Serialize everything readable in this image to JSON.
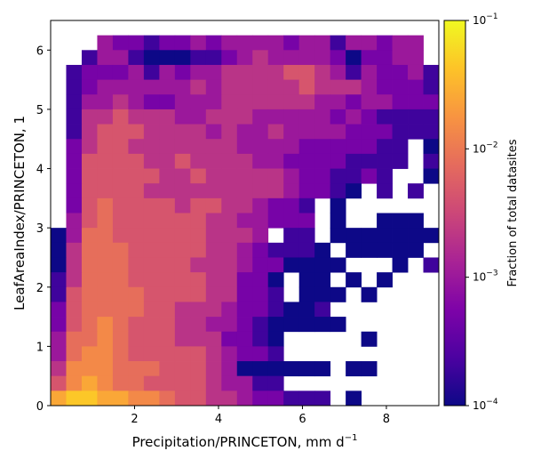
{
  "chart_data": {
    "type": "heatmap",
    "title": "",
    "xlabel_base": "Precipitation/PRINCETON,  mm d",
    "xlabel_sup": "−1",
    "ylabel": "LeafAreaIndex/PRINCETON,  1",
    "xlim": [
      0,
      9.25
    ],
    "ylim": [
      0,
      6.5
    ],
    "xticks": [
      {
        "value": 2,
        "label": "2"
      },
      {
        "value": 4,
        "label": "4"
      },
      {
        "value": 6,
        "label": "6"
      },
      {
        "value": 8,
        "label": "8"
      }
    ],
    "yticks": [
      {
        "value": 0,
        "label": "0"
      },
      {
        "value": 1,
        "label": "1"
      },
      {
        "value": 2,
        "label": "2"
      },
      {
        "value": 3,
        "label": "3"
      },
      {
        "value": 4,
        "label": "4"
      },
      {
        "value": 5,
        "label": "5"
      },
      {
        "value": 6,
        "label": "6"
      }
    ],
    "colorbar": {
      "label": "Fraction of total datasites",
      "scale": "log",
      "range": [
        0.0001,
        0.1
      ],
      "colormap": "plasma",
      "ticks": [
        {
          "value": 0.1,
          "base": "10",
          "exp": "−1"
        },
        {
          "value": 0.01,
          "base": "10",
          "exp": "−2"
        },
        {
          "value": 0.001,
          "base": "10",
          "exp": "−3"
        },
        {
          "value": 0.0001,
          "base": "10",
          "exp": "−4"
        }
      ]
    },
    "bins": {
      "nx": 25,
      "ny": 26,
      "x_edges": [
        0,
        9.25
      ],
      "y_edges": [
        0,
        6.5
      ]
    },
    "rows_top_to_bottom": [
      ". . . . . . . . . . . . . . . . . . . . . . . . .",
      ". . . 3 2 2 1 2 2 3 2 3 3 3 3 2 3 3 1 3 3 2 3 3 .",
      ". . 1 3 3 1 0 0 0 1 1 2 3 4 3 3 3 3 2 0 2 2 3 3 .",
      ". 1 2 2 2 3 1 3 2 3 3 4 4 4 4 5 5 4 3 1 3 2 2 3 1",
      ". 1 2 3 3 3 3 3 3 4 3 4 4 4 4 4 5 4 4 4 3 2 2 2 1",
      ". 1 3 3 4 3 2 2 3 3 3 4 4 4 4 4 4 3 3 2 3 3 2 2 2",
      ". 1 4 4 5 4 4 4 3 3 4 4 4 3 3 3 3 3 2 3 2 1 1 1 1",
      ". 1 4 5 5 5 4 4 4 4 3 4 3 3 4 3 3 3 3 2 2 2 1 1 1",
      ". 2 4 5 5 4 4 4 4 4 4 4 3 3 3 3 2 2 2 2 2 1 1 . 0",
      ". 2 5 5 5 5 4 4 5 4 4 4 4 3 3 2 2 2 2 1 1 1 1 . 1",
      ". 2 5 5 5 5 5 4 4 5 4 4 4 4 4 3 2 2 1 1 2 1 . . 0",
      ". 2 5 5 5 5 4 4 4 4 4 4 4 4 4 3 2 2 1 0 . 1 . 1 .",
      ". 2 5 6 5 5 5 5 4 5 5 4 4 3 2 2 1 . 0 . . . . . .",
      ". 3 5 6 5 5 5 5 5 5 4 4 3 3 2 2 2 . 0 . . 0 0 0 .",
      "0 3 6 6 5 5 5 5 5 5 4 4 4 3 . 1 1 . 0 0 0 0 0 0 0",
      "0 4 6 6 6 5 5 5 5 5 4 4 3 2 1 1 1 0 . 0 0 0 0 0 .",
      "0 4 6 6 6 5 5 5 5 4 4 4 3 2 2 0 0 0 0 . . . 0 . 1",
      "1 4 6 6 6 5 5 5 5 5 4 4 2 2 0 . 0 0 . 0 . 0 . . .",
      "1 5 6 6 6 6 5 5 5 5 4 4 2 2 1 . 0 0 0 . 0 . . . .",
      "2 5 6 6 6 6 5 5 4 4 4 3 2 2 1 0 0 1 . . . . . . .",
      "2 5 6 7 6 5 5 5 4 4 3 3 2 1 0 0 0 0 0 . . . . . .",
      "3 6 6 7 6 5 5 5 4 4 4 2 2 1 0 . . . . . 0 . . . .",
      "3 6 7 7 6 5 5 5 5 5 4 3 2 2 1 . . . . . . . . . .",
      "4 7 7 7 6 6 6 5 5 5 4 3 0 0 0 0 0 0 . 0 0 . . . .",
      "5 7 8 7 6 6 5 5 5 5 4 3 3 1 1 . . . . . . . . . .",
      "8 9 9 8 8 7 7 6 5 5 4 4 3 2 2 1 1 1 . 0 . . . . ."
    ],
    "cell_levels_log10_fraction": {
      "0": -4.0,
      "1": -3.7,
      "2": -3.3,
      "3": -3.0,
      "4": -2.7,
      "5": -2.35,
      "6": -2.1,
      "7": -1.85,
      "8": -1.6,
      "9": -1.35
    },
    "blank_cell": "."
  }
}
